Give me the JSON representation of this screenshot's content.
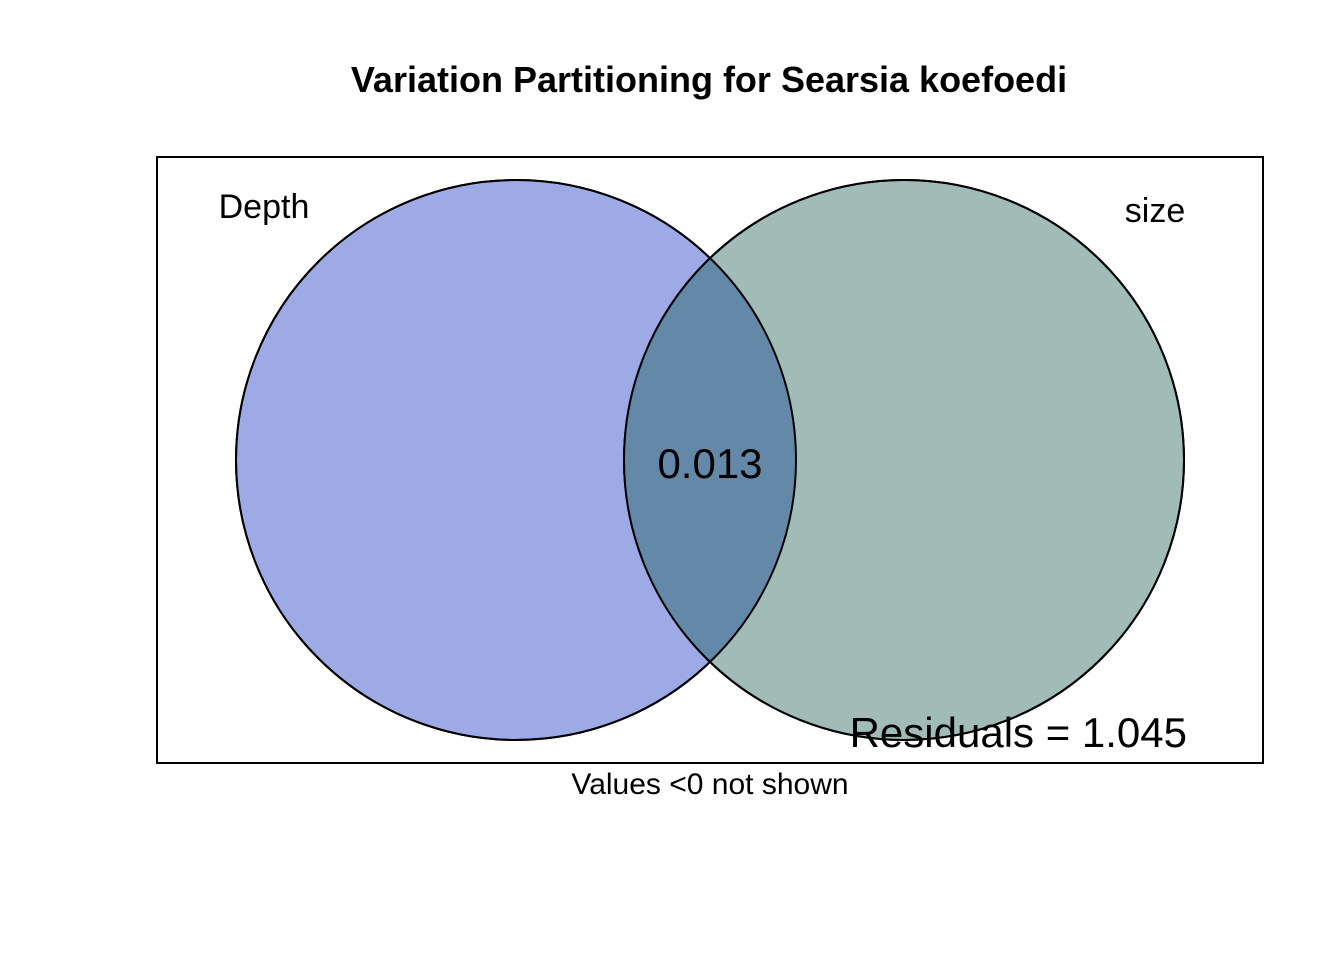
{
  "title": "Variation Partitioning for Searsia koefoedi",
  "sets": [
    {
      "name": "Depth",
      "color": "#9daae6"
    },
    {
      "name": "size",
      "color": "#a1bbb6"
    }
  ],
  "overlap": {
    "value": "0.013",
    "color": "#6488a8"
  },
  "residuals_label": "Residuals = 1.045",
  "note": "Values <0 not shown",
  "outline_color": "#000000"
}
